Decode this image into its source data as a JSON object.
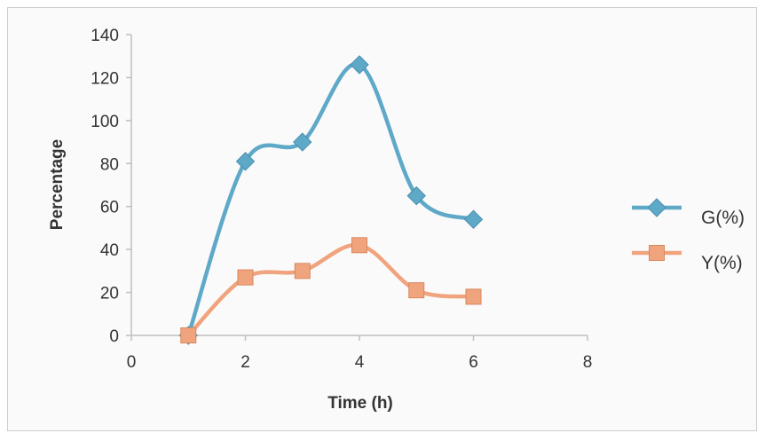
{
  "chart_data": {
    "type": "line",
    "title": "",
    "xlabel": "Time (h)",
    "ylabel": "Percentage",
    "xlim": [
      0,
      8
    ],
    "ylim": [
      0,
      140
    ],
    "xticks": [
      0,
      2,
      4,
      6,
      8
    ],
    "yticks": [
      0,
      20,
      40,
      60,
      80,
      100,
      120,
      140
    ],
    "grid": false,
    "legend_position": "right",
    "smooth": true,
    "series": [
      {
        "name": "G(%)",
        "color": "#5ea8c8",
        "marker": "diamond",
        "x": [
          1,
          2,
          3,
          4,
          5,
          6
        ],
        "y": [
          0,
          81,
          90,
          126,
          65,
          54
        ]
      },
      {
        "name": "Y(%)",
        "color": "#f0a47e",
        "marker": "square",
        "x": [
          1,
          2,
          3,
          4,
          5,
          6
        ],
        "y": [
          0,
          27,
          30,
          42,
          21,
          18
        ]
      }
    ]
  }
}
